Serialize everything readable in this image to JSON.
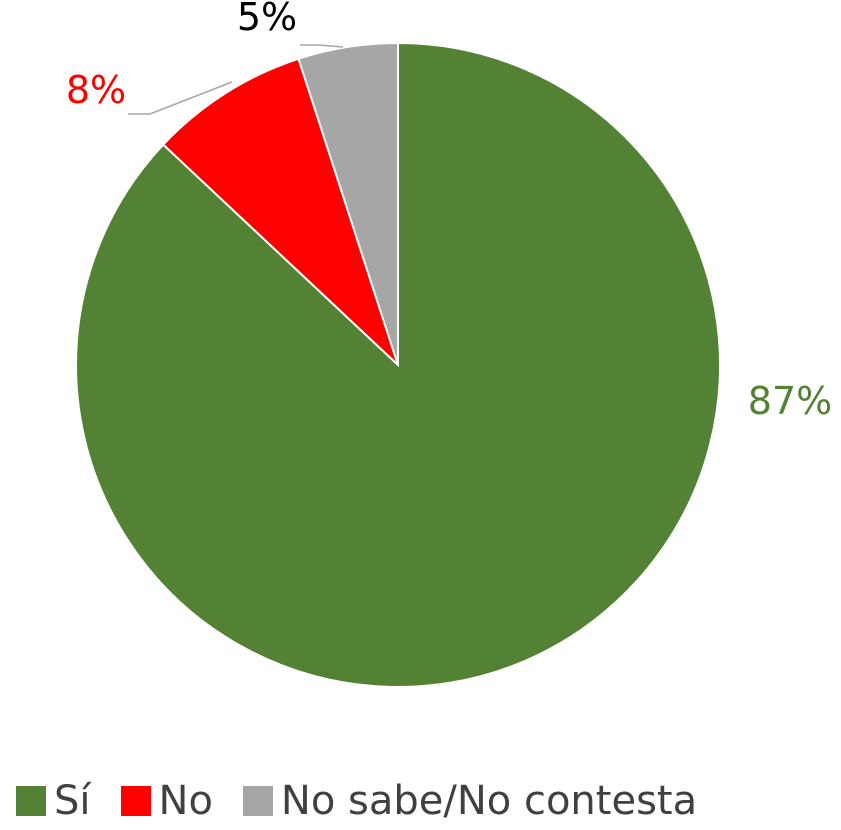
{
  "chart_data": {
    "type": "pie",
    "series": [
      {
        "categories": [
          "Sí",
          "No",
          "No sabe/No contesta"
        ],
        "values": [
          87,
          8,
          5
        ],
        "labels": [
          "87%",
          "8%",
          "5%"
        ],
        "colors": [
          "#548235",
          "#FF0000",
          "#A6A6A6"
        ],
        "label_colors": [
          "#548235",
          "#FF0000",
          "#000000"
        ]
      }
    ],
    "start_angle": "top (12 o'clock)",
    "direction": "clockwise",
    "legend_position": "bottom",
    "title": ""
  },
  "legend": {
    "items": [
      {
        "label": "Sí",
        "color": "#548235"
      },
      {
        "label": "No",
        "color": "#FF0000"
      },
      {
        "label": "No sabe/No contesta",
        "color": "#A6A6A6"
      }
    ]
  }
}
